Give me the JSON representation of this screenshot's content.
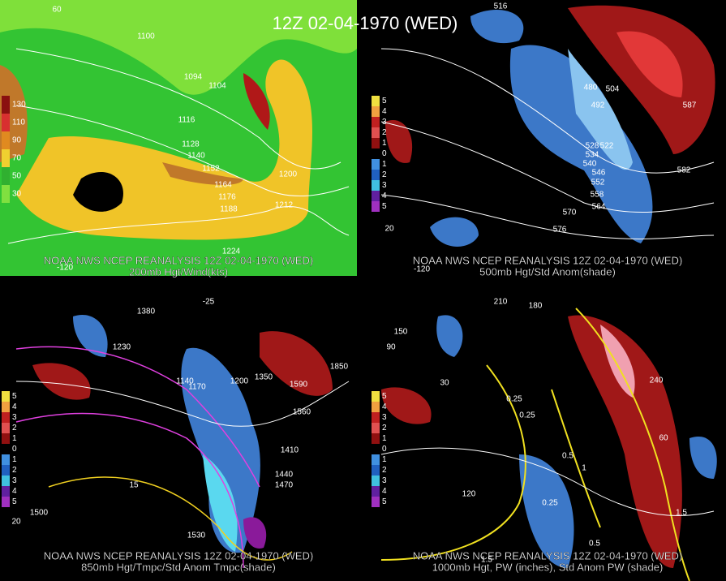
{
  "title": "12Z 02-04-1970 (WED)",
  "panels": [
    {
      "caption": "NOAA NWS NCEP REANALYSIS 12Z 02-04-1970 (WED)",
      "subtitle": "200mb Hgt/Wind(kts)",
      "legend": [
        "130",
        "110",
        "90",
        "70",
        "50",
        "30"
      ],
      "contour_labels": [
        "1100",
        "1094",
        "1104",
        "1116",
        "1128",
        "1140",
        "1152",
        "1164",
        "1176",
        "1188",
        "1200",
        "1212",
        "1224",
        "60",
        "-120"
      ]
    },
    {
      "caption": "NOAA NWS NCEP REANALYSIS 12Z 02-04-1970 (WED)",
      "subtitle": "500mb Hgt/Std Anom(shade)",
      "legend": [
        "5",
        "4",
        "3",
        "2",
        "1",
        "0",
        "1",
        "2",
        "3",
        "4",
        "5"
      ],
      "contour_labels": [
        "516",
        "492",
        "504",
        "480",
        "528",
        "522",
        "534",
        "540",
        "546",
        "552",
        "558",
        "564",
        "570",
        "576",
        "582",
        "587",
        "20",
        "-120"
      ]
    },
    {
      "caption": "NOAA NWS NCEP REANALYSIS 12Z 02-04-1970 (WED)",
      "subtitle": "850mb Hgt/Tmpc/Std Anom Tmpc(shade)",
      "legend": [
        "5",
        "4",
        "3",
        "2",
        "1",
        "0",
        "1",
        "2",
        "3",
        "4",
        "5"
      ],
      "contour_labels": [
        "1380",
        "1230",
        "1140",
        "1170",
        "1200",
        "1350",
        "1590",
        "1560",
        "1410",
        "1440",
        "1470",
        "1530",
        "1500",
        "1850",
        "-25",
        "15",
        "20"
      ]
    },
    {
      "caption": "NOAA NWS NCEP REANALYSIS 12Z 02-04-1970 (WED)",
      "subtitle": "1000mb Hgt, PW (inches), Std Anom PW (shade)",
      "legend": [
        "5",
        "4",
        "3",
        "2",
        "1",
        "0",
        "1",
        "2",
        "3",
        "4",
        "5"
      ],
      "contour_labels": [
        "210",
        "180",
        "120",
        "150",
        "90",
        "30",
        "0.25",
        "0.25",
        "0.5",
        "1",
        "1.5",
        "0.25",
        "0.5",
        "1.5",
        "240",
        "60"
      ]
    }
  ]
}
